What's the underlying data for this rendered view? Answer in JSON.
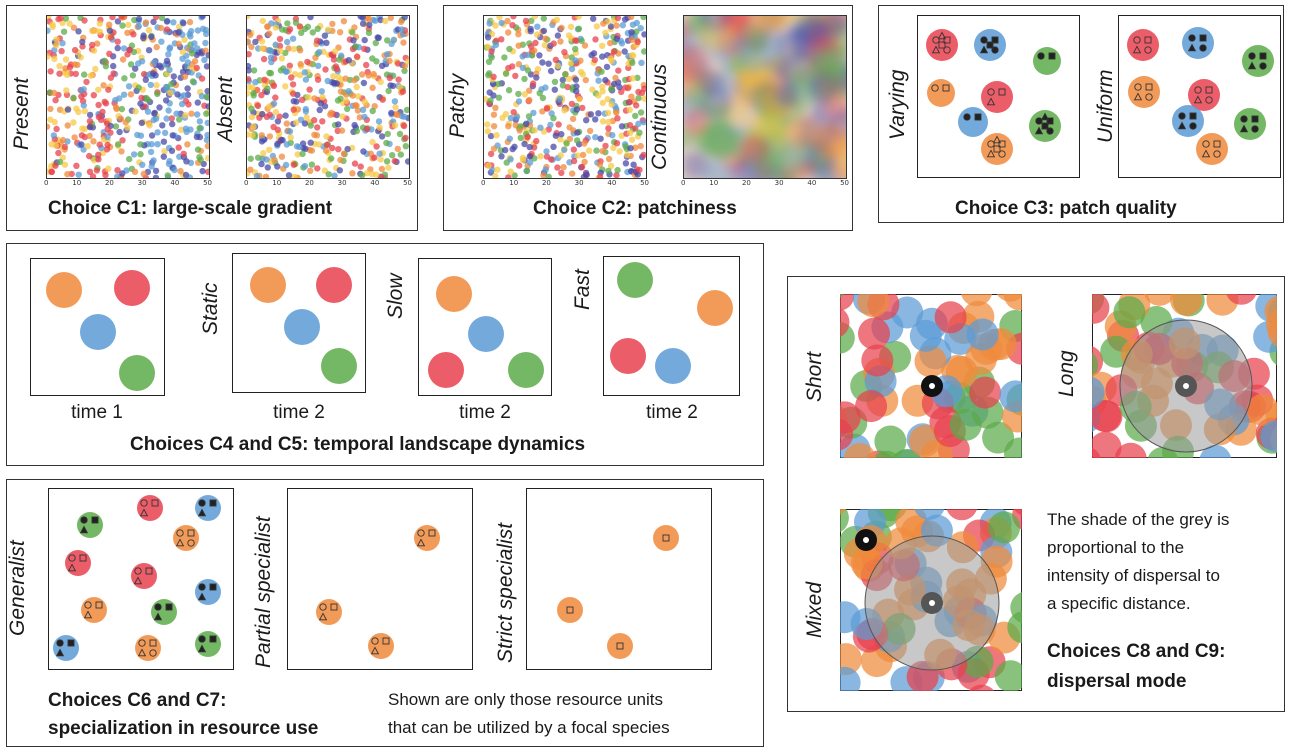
{
  "colors": {
    "red": "#e8414e",
    "blue": "#5b9bd5",
    "green": "#5cab4a",
    "orange": "#f08a3c",
    "yellow": "#f7c948",
    "purple": "#4a4aa8",
    "grey": "#9a9a9a"
  },
  "c1": {
    "caption": "Choice C1: large-scale gradient",
    "left_label": "Present",
    "right_label": "Absent",
    "ticks": [
      "0",
      "10",
      "20",
      "30",
      "40",
      "50"
    ]
  },
  "c2": {
    "caption": "Choice C2: patchiness",
    "left_label": "Patchy",
    "right_label": "Continuous",
    "ticks": [
      "0",
      "10",
      "20",
      "30",
      "40",
      "50"
    ]
  },
  "c3": {
    "caption": "Choice C3: patch quality",
    "left_label": "Varying",
    "right_label": "Uniform"
  },
  "c45": {
    "caption": "Choices C4 and C5: temporal landscape dynamics",
    "labels": [
      "Static",
      "Slow",
      "Fast"
    ],
    "times": [
      "time 1",
      "time 2",
      "time 2",
      "time 2"
    ]
  },
  "c67": {
    "caption_line1": "Choices C6 and C7:",
    "caption_line2": "specialization in resource use",
    "labels": [
      "Generalist",
      "Partial specialist",
      "Strict specialist"
    ],
    "note_line1": "Shown  are only those resource units",
    "note_line2": "that can be utilized by a focal species"
  },
  "c89": {
    "labels": [
      "Short",
      "Long",
      "Mixed"
    ],
    "note_lines": [
      "The shade of the grey is",
      "proportional to the",
      "intensity of dispersal to",
      "a specific distance."
    ],
    "caption_line1": "Choices C8 and C9:",
    "caption_line2": "dispersal mode"
  }
}
